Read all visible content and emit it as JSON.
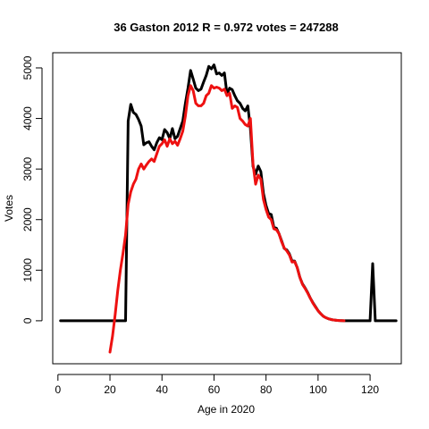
{
  "chart_data": {
    "type": "line",
    "title": "36 Gaston 2012 R = 0.972 votes = 247288",
    "xlabel": "Age in 2020",
    "ylabel": "Votes",
    "xlim": [
      -2,
      132
    ],
    "ylim": [
      -850,
      5300
    ],
    "x_ticks": [
      0,
      20,
      40,
      60,
      80,
      100,
      120
    ],
    "y_ticks": [
      0,
      1000,
      2000,
      3000,
      4000,
      5000
    ],
    "grid": false,
    "legend": "none",
    "series": [
      {
        "color": "#000000",
        "points": [
          [
            1,
            0
          ],
          [
            26,
            0
          ],
          [
            27,
            3950
          ],
          [
            28,
            4280
          ],
          [
            29,
            4120
          ],
          [
            30,
            4080
          ],
          [
            31,
            3980
          ],
          [
            32,
            3850
          ],
          [
            33,
            3480
          ],
          [
            34,
            3520
          ],
          [
            35,
            3540
          ],
          [
            36,
            3450
          ],
          [
            37,
            3380
          ],
          [
            38,
            3520
          ],
          [
            39,
            3620
          ],
          [
            40,
            3580
          ],
          [
            41,
            3780
          ],
          [
            42,
            3720
          ],
          [
            43,
            3600
          ],
          [
            44,
            3800
          ],
          [
            45,
            3600
          ],
          [
            46,
            3650
          ],
          [
            47,
            3800
          ],
          [
            48,
            3950
          ],
          [
            49,
            4300
          ],
          [
            50,
            4600
          ],
          [
            51,
            4950
          ],
          [
            52,
            4780
          ],
          [
            53,
            4600
          ],
          [
            54,
            4550
          ],
          [
            55,
            4580
          ],
          [
            56,
            4720
          ],
          [
            57,
            4850
          ],
          [
            58,
            5030
          ],
          [
            59,
            4980
          ],
          [
            60,
            5060
          ],
          [
            61,
            4880
          ],
          [
            62,
            4900
          ],
          [
            63,
            4850
          ],
          [
            64,
            4900
          ],
          [
            65,
            4480
          ],
          [
            66,
            4600
          ],
          [
            67,
            4570
          ],
          [
            68,
            4450
          ],
          [
            69,
            4350
          ],
          [
            70,
            4300
          ],
          [
            71,
            4200
          ],
          [
            72,
            4150
          ],
          [
            73,
            4250
          ],
          [
            74,
            3800
          ],
          [
            75,
            3050
          ],
          [
            76,
            2900
          ],
          [
            77,
            3060
          ],
          [
            78,
            2950
          ],
          [
            79,
            2520
          ],
          [
            80,
            2280
          ],
          [
            81,
            2120
          ],
          [
            82,
            2100
          ],
          [
            83,
            1850
          ],
          [
            84,
            1830
          ],
          [
            85,
            1720
          ],
          [
            86,
            1580
          ],
          [
            87,
            1430
          ],
          [
            88,
            1400
          ],
          [
            89,
            1320
          ],
          [
            90,
            1180
          ],
          [
            91,
            1180
          ],
          [
            92,
            1050
          ],
          [
            93,
            860
          ],
          [
            94,
            730
          ],
          [
            95,
            650
          ],
          [
            96,
            560
          ],
          [
            97,
            450
          ],
          [
            98,
            360
          ],
          [
            99,
            280
          ],
          [
            100,
            200
          ],
          [
            101,
            140
          ],
          [
            102,
            90
          ],
          [
            103,
            60
          ],
          [
            104,
            40
          ],
          [
            105,
            25
          ],
          [
            106,
            15
          ],
          [
            107,
            10
          ],
          [
            108,
            5
          ],
          [
            109,
            3
          ],
          [
            110,
            0
          ],
          [
            120,
            0
          ],
          [
            121,
            1130
          ],
          [
            122,
            0
          ],
          [
            130,
            0
          ]
        ]
      },
      {
        "color": "#ee1111",
        "points": [
          [
            20,
            -620
          ],
          [
            21,
            -300
          ],
          [
            22,
            120
          ],
          [
            23,
            600
          ],
          [
            24,
            1000
          ],
          [
            25,
            1330
          ],
          [
            26,
            1700
          ],
          [
            27,
            2300
          ],
          [
            28,
            2550
          ],
          [
            29,
            2700
          ],
          [
            30,
            2800
          ],
          [
            31,
            3000
          ],
          [
            32,
            3100
          ],
          [
            33,
            3000
          ],
          [
            34,
            3080
          ],
          [
            35,
            3150
          ],
          [
            36,
            3200
          ],
          [
            37,
            3150
          ],
          [
            38,
            3300
          ],
          [
            39,
            3450
          ],
          [
            40,
            3500
          ],
          [
            41,
            3580
          ],
          [
            42,
            3450
          ],
          [
            43,
            3600
          ],
          [
            44,
            3500
          ],
          [
            45,
            3550
          ],
          [
            46,
            3470
          ],
          [
            47,
            3600
          ],
          [
            48,
            3750
          ],
          [
            49,
            4050
          ],
          [
            50,
            4450
          ],
          [
            51,
            4650
          ],
          [
            52,
            4550
          ],
          [
            53,
            4300
          ],
          [
            54,
            4250
          ],
          [
            55,
            4250
          ],
          [
            56,
            4300
          ],
          [
            57,
            4450
          ],
          [
            58,
            4500
          ],
          [
            59,
            4650
          ],
          [
            60,
            4600
          ],
          [
            61,
            4620
          ],
          [
            62,
            4600
          ],
          [
            63,
            4550
          ],
          [
            64,
            4580
          ],
          [
            65,
            4450
          ],
          [
            66,
            4500
          ],
          [
            67,
            4200
          ],
          [
            68,
            4250
          ],
          [
            69,
            4220
          ],
          [
            70,
            4000
          ],
          [
            71,
            3950
          ],
          [
            72,
            3880
          ],
          [
            73,
            3850
          ],
          [
            74,
            4000
          ],
          [
            75,
            3100
          ],
          [
            76,
            2700
          ],
          [
            77,
            2880
          ],
          [
            78,
            2800
          ],
          [
            79,
            2400
          ],
          [
            80,
            2200
          ],
          [
            81,
            2050
          ],
          [
            82,
            2000
          ],
          [
            83,
            1820
          ],
          [
            84,
            1800
          ],
          [
            85,
            1720
          ],
          [
            86,
            1560
          ],
          [
            87,
            1440
          ],
          [
            88,
            1380
          ],
          [
            89,
            1300
          ],
          [
            90,
            1160
          ],
          [
            91,
            1170
          ],
          [
            92,
            1050
          ],
          [
            93,
            860
          ],
          [
            94,
            720
          ],
          [
            95,
            640
          ],
          [
            96,
            550
          ],
          [
            97,
            450
          ],
          [
            98,
            350
          ],
          [
            99,
            270
          ],
          [
            100,
            200
          ],
          [
            101,
            140
          ],
          [
            102,
            90
          ],
          [
            103,
            60
          ],
          [
            104,
            40
          ],
          [
            105,
            25
          ],
          [
            106,
            15
          ],
          [
            107,
            10
          ],
          [
            108,
            5
          ],
          [
            109,
            3
          ],
          [
            110,
            0
          ]
        ]
      }
    ]
  }
}
